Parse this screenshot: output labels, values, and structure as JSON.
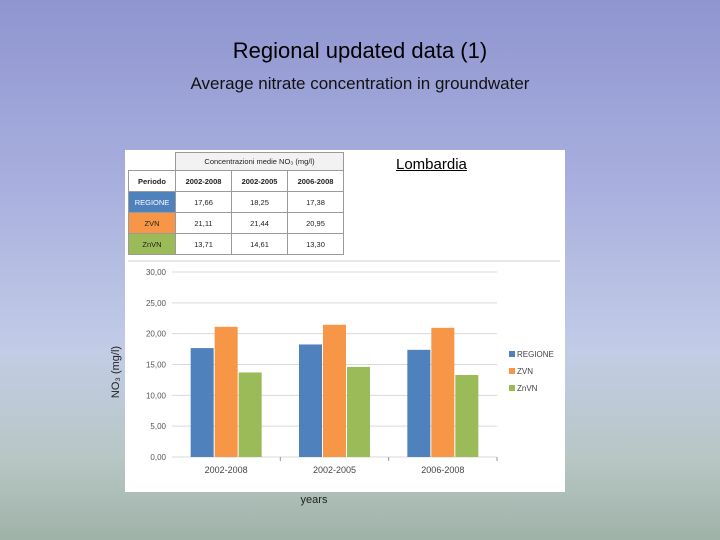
{
  "slide": {
    "title": "Regional updated data (1)",
    "subtitle": "Average nitrate concentration in groundwater",
    "region_label": "Lombardia"
  },
  "table": {
    "header": "Concentrazioni medie NO₃ (mg/l)",
    "corner": "Periodo",
    "columns": [
      "2002-2008",
      "2002-2005",
      "2006-2008"
    ],
    "rows": [
      {
        "label": "REGIONE",
        "values": [
          "17,66",
          "18,25",
          "17,38"
        ],
        "color": "#4f81bd"
      },
      {
        "label": "ZVN",
        "values": [
          "21,11",
          "21,44",
          "20,95"
        ],
        "color": "#f79646"
      },
      {
        "label": "ZnVN",
        "values": [
          "13,71",
          "14,61",
          "13,30"
        ],
        "color": "#9bbb59"
      }
    ]
  },
  "chart_data": {
    "type": "bar",
    "categories": [
      "2002-2008",
      "2002-2005",
      "2006-2008"
    ],
    "series": [
      {
        "name": "REGIONE",
        "color": "#4f81bd",
        "values": [
          17.66,
          18.25,
          17.38
        ]
      },
      {
        "name": "ZVN",
        "color": "#f79646",
        "values": [
          21.11,
          21.44,
          20.95
        ]
      },
      {
        "name": "ZnVN",
        "color": "#9bbb59",
        "values": [
          13.71,
          14.61,
          13.3
        ]
      }
    ],
    "y_ticks": [
      "0,00",
      "5,00",
      "10,00",
      "15,00",
      "20,00",
      "25,00",
      "30,00"
    ],
    "ylim": [
      0,
      30
    ],
    "xlabel": "years",
    "ylabel": "NO₃ (mg/l)",
    "grid": true,
    "legend": "right"
  }
}
